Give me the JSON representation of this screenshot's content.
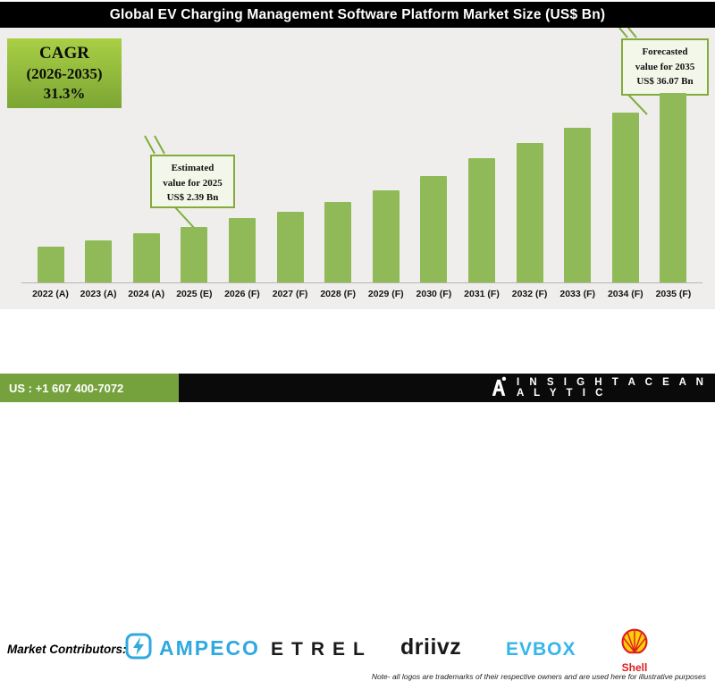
{
  "title": "Global EV Charging Management Software Platform Market Size (US$ Bn)",
  "cagr_box": {
    "line1": "CAGR",
    "line2": "(2026-2035)",
    "line3": "31.3%"
  },
  "annotations": {
    "estimated": {
      "lines": [
        "Estimated",
        "value for 2025",
        "US$ 2.39 Bn"
      ]
    },
    "forecast": {
      "lines": [
        "Forecasted",
        "value for 2035",
        "US$ 36.07 Bn"
      ]
    }
  },
  "chart_data": {
    "type": "bar",
    "title": "Global EV Charging Management Software Platform Market Size (US$ Bn)",
    "unit": "US$ Bn",
    "categories": [
      "2022 (A)",
      "2023 (A)",
      "2024 (A)",
      "2025 (E)",
      "2026 (F)",
      "2027 (F)",
      "2028 (F)",
      "2029 (F)",
      "2030 (F)",
      "2031 (F)",
      "2032 (F)",
      "2033 (F)",
      "2034 (F)",
      "2035 (F)"
    ],
    "labeled_values": {
      "2025 (E)": 2.39,
      "2035 (F)": 36.07
    },
    "cagr": {
      "period": "2026-2035",
      "value_pct": 31.3
    },
    "bar_heights_relative": [
      40,
      47,
      55,
      62,
      72,
      79,
      90,
      103,
      119,
      139,
      156,
      173,
      190,
      212
    ],
    "bar_color": "#8fba57",
    "legend": "none",
    "y_axis": "hidden",
    "note": "bar heights stylized; only 2025 and 2035 values annotated on chart"
  },
  "contributors": {
    "label": "Market Contributors:",
    "ampeco": {
      "text": "AMPECO"
    },
    "etrel": {
      "text": "ETREL"
    },
    "driivz": {
      "text": "driivz"
    },
    "evbox": {
      "text": "EVBOX"
    },
    "shell": {
      "text": "Shell"
    }
  },
  "note": "Note- all logos are trademarks of their respective owners and are used here for illustrative purposes",
  "footer": {
    "phone": "US : +1 607 400-7072",
    "brand": "I N S I G H T   A C E   A N A L Y T I C"
  },
  "colors": {
    "bar_green": "#8fba57",
    "accent_green": "#83ab3c",
    "footer_green": "#76a23e",
    "ampeco_blue": "#2fa9e0",
    "evbox_blue": "#35b6e9",
    "shell_red": "#dd1d21",
    "shell_yellow": "#fbce07"
  }
}
